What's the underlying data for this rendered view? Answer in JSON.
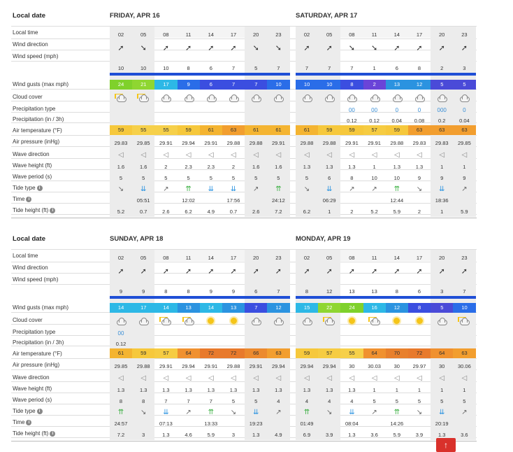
{
  "labels": {
    "local_date": "Local date",
    "local_time": "Local time",
    "wind_direction": "Wind direction",
    "wind_speed": "Wind speed (mph)",
    "wind_gusts": "Wind gusts (max mph)",
    "cloud_cover": "Cloud cover",
    "precip_type": "Precipitation type",
    "precip": "Precipitation (in / 3h)",
    "air_temp": "Air temperature (°F)",
    "air_pressure": "Air pressure (inHg)",
    "wave_direction": "Wave direction",
    "wave_height": "Wave height (ft)",
    "wave_period": "Wave period (s)",
    "tide_type": "Tide type",
    "time": "Time",
    "tide_height": "Tide height (ft)"
  },
  "times": [
    "02",
    "05",
    "08",
    "11",
    "14",
    "17",
    "20",
    "23"
  ],
  "days": [
    {
      "title": "FRIDAY, APR 16",
      "wind_speed": [
        "10",
        "10",
        "10",
        "8",
        "6",
        "7",
        "5",
        "7"
      ],
      "wind_dir": [
        "➚",
        "➘",
        "➚",
        "➚",
        "➚",
        "➚",
        "➘",
        "➘"
      ],
      "gusts": [
        "24",
        "21",
        "17",
        "9",
        "6",
        "7",
        "7",
        "10"
      ],
      "gust_colors": [
        "#7fd12b",
        "#8fd631",
        "#2db8e6",
        "#2a6de8",
        "#3b4ee0",
        "#3b4ee0",
        "#3b4ee0",
        "#2a6de8"
      ],
      "cloud": [
        "sun-cloud",
        "sun-cloud",
        "cloud",
        "cloud",
        "cloud",
        "cloud",
        "cloud",
        "cloud"
      ],
      "precip_type": [
        "",
        "",
        "",
        "",
        "",
        "",
        "",
        ""
      ],
      "precip": [
        "",
        "",
        "",
        "",
        "",
        "",
        "",
        ""
      ],
      "temp": [
        "59",
        "55",
        "55",
        "59",
        "61",
        "63",
        "61",
        "61"
      ],
      "temp_colors": [
        "#f6c83c",
        "#f6d04a",
        "#f6d04a",
        "#f6c83c",
        "#f4b431",
        "#f29e2f",
        "#f4b431",
        "#f4b431"
      ],
      "pressure": [
        "29.83",
        "29.85",
        "29.91",
        "29.94",
        "29.91",
        "29.88",
        "29.88",
        "29.91"
      ],
      "wave_dir": [
        "◁",
        "◁",
        "◁",
        "◁",
        "◁",
        "◁",
        "◁",
        "◁"
      ],
      "wave_height": [
        "1.6",
        "1.6",
        "2",
        "2.3",
        "2.3",
        "2",
        "1.6",
        "1.6"
      ],
      "wave_period": [
        "5",
        "5",
        "5",
        "5",
        "5",
        "5",
        "5",
        "5"
      ],
      "tide_type": [
        "↘",
        "⇊",
        "↗",
        "⇈",
        "⇊",
        "⇊",
        "↗",
        "⇈"
      ],
      "tide_time": [
        "",
        "05:51",
        "",
        "12:02",
        "",
        "17:56",
        "",
        "24:12"
      ],
      "tide_height": [
        "5.2",
        "0.7",
        "2.6",
        "6.2",
        "4.9",
        "0.7",
        "2.6",
        "7.2"
      ]
    },
    {
      "title": "SATURDAY, APR 17",
      "wind_speed": [
        "7",
        "7",
        "7",
        "1",
        "6",
        "8",
        "2",
        "3"
      ],
      "wind_dir": [
        "➚",
        "➚",
        "➘",
        "➘",
        "➚",
        "➚",
        "➚",
        "➚"
      ],
      "gusts": [
        "10",
        "10",
        "8",
        "2",
        "13",
        "12",
        "5",
        "5"
      ],
      "gust_colors": [
        "#2a6de8",
        "#2a6de8",
        "#3b4ee0",
        "#6a44d8",
        "#2b93e0",
        "#2b93e0",
        "#4a4ad8",
        "#4a4ad8"
      ],
      "cloud": [
        "cloud",
        "cloud",
        "cloud",
        "cloud",
        "cloud",
        "cloud",
        "cloud",
        "cloud"
      ],
      "precip_type": [
        "",
        "",
        "00",
        "00",
        "0",
        "0",
        "000",
        "0"
      ],
      "precip": [
        "",
        "",
        "0.12",
        "0.12",
        "0.04",
        "0.08",
        "0.2",
        "0.04"
      ],
      "temp": [
        "61",
        "59",
        "59",
        "57",
        "59",
        "63",
        "63",
        "63"
      ],
      "temp_colors": [
        "#f4b431",
        "#f6c83c",
        "#f6c83c",
        "#f6cc42",
        "#f6c83c",
        "#f29e2f",
        "#f29e2f",
        "#f29e2f"
      ],
      "pressure": [
        "29.88",
        "29.88",
        "29.91",
        "29.91",
        "29.88",
        "29.83",
        "29.83",
        "29.85"
      ],
      "wave_dir": [
        "◁",
        "◁",
        "◁",
        "◁",
        "◁",
        "◁",
        "◁",
        "◁"
      ],
      "wave_height": [
        "1.3",
        "1.3",
        "1.3",
        "1",
        "1.3",
        "1.3",
        "1",
        "1"
      ],
      "wave_period": [
        "5",
        "6",
        "8",
        "10",
        "10",
        "9",
        "9",
        "9"
      ],
      "tide_type": [
        "↘",
        "⇊",
        "↗",
        "↗",
        "⇈",
        "↘",
        "⇊",
        "↗"
      ],
      "tide_time": [
        "",
        "06:29",
        "",
        "",
        "12:44",
        "",
        "18:36",
        ""
      ],
      "tide_height": [
        "6.2",
        "1",
        "2",
        "5.2",
        "5.9",
        "2",
        "1",
        "5.9"
      ]
    },
    {
      "title": "SUNDAY, APR 18",
      "wind_speed": [
        "9",
        "9",
        "8",
        "8",
        "9",
        "9",
        "6",
        "7"
      ],
      "wind_dir": [
        "➚",
        "➚",
        "➚",
        "➚",
        "➚",
        "➚",
        "➚",
        "➚"
      ],
      "gusts": [
        "14",
        "17",
        "14",
        "13",
        "14",
        "13",
        "7",
        "12"
      ],
      "gust_colors": [
        "#2db8e6",
        "#2db8e6",
        "#2db8e6",
        "#2b93e0",
        "#2db8e6",
        "#2b93e0",
        "#3b4ee0",
        "#2b93e0"
      ],
      "cloud": [
        "cloud",
        "cloud",
        "sun-cloud",
        "sun-cloud",
        "sun",
        "sun",
        "cloud",
        "cloud"
      ],
      "precip_type": [
        "00",
        "",
        "",
        "",
        "",
        "",
        "",
        ""
      ],
      "precip": [
        "0.12",
        "",
        "",
        "",
        "",
        "",
        "",
        ""
      ],
      "temp": [
        "61",
        "59",
        "57",
        "64",
        "72",
        "72",
        "66",
        "63"
      ],
      "temp_colors": [
        "#f4b431",
        "#f6c83c",
        "#f6cc42",
        "#f0912f",
        "#e87a2c",
        "#e87a2c",
        "#ec8a2e",
        "#f29e2f"
      ],
      "pressure": [
        "29.85",
        "29.88",
        "29.91",
        "29.94",
        "29.91",
        "29.88",
        "29.91",
        "29.94"
      ],
      "wave_dir": [
        "◁",
        "◁",
        "◁",
        "◁",
        "◁",
        "◁",
        "◁",
        "◁"
      ],
      "wave_height": [
        "1.3",
        "1.3",
        "1.3",
        "1.3",
        "1.3",
        "1.3",
        "1.3",
        "1.3"
      ],
      "wave_period": [
        "8",
        "8",
        "7",
        "7",
        "7",
        "5",
        "5",
        "4"
      ],
      "tide_type": [
        "⇈",
        "↘",
        "⇊",
        "↗",
        "⇈",
        "↘",
        "⇊",
        "↗"
      ],
      "tide_time": [
        "24:57",
        "",
        "07:13",
        "",
        "13:33",
        "",
        "19:23",
        ""
      ],
      "tide_height": [
        "7.2",
        "3",
        "1.3",
        "4.6",
        "5.9",
        "3",
        "1.3",
        "4.9"
      ]
    },
    {
      "title": "MONDAY, APR 19",
      "wind_speed": [
        "8",
        "12",
        "13",
        "13",
        "8",
        "6",
        "3",
        "7"
      ],
      "wind_dir": [
        "➚",
        "➚",
        "➚",
        "➚",
        "➚",
        "➚",
        "➚",
        "➚"
      ],
      "gusts": [
        "15",
        "22",
        "24",
        "16",
        "12",
        "8",
        "5",
        "10"
      ],
      "gust_colors": [
        "#2db8e6",
        "#8fd631",
        "#7fd12b",
        "#2db8e6",
        "#2b93e0",
        "#3b4ee0",
        "#4a4ad8",
        "#2a6de8"
      ],
      "cloud": [
        "cloud",
        "sun-cloud",
        "sun",
        "sun-cloud",
        "sun",
        "sun",
        "cloud",
        "sun-cloud"
      ],
      "precip_type": [
        "",
        "",
        "",
        "",
        "",
        "",
        "",
        ""
      ],
      "precip": [
        "",
        "",
        "",
        "",
        "",
        "",
        "",
        ""
      ],
      "temp": [
        "59",
        "57",
        "55",
        "64",
        "70",
        "72",
        "64",
        "63"
      ],
      "temp_colors": [
        "#f6c83c",
        "#f6cc42",
        "#f6d04a",
        "#f0912f",
        "#e8802c",
        "#e87a2c",
        "#f0912f",
        "#f29e2f"
      ],
      "pressure": [
        "29.94",
        "29.94",
        "30",
        "30.03",
        "30",
        "29.97",
        "30",
        "30.06"
      ],
      "wave_dir": [
        "◁",
        "◁",
        "◁",
        "◁",
        "◁",
        "◁",
        "◁",
        "◁"
      ],
      "wave_height": [
        "1.3",
        "1.3",
        "1.3",
        "1",
        "1",
        "1",
        "1",
        "1"
      ],
      "wave_period": [
        "4",
        "4",
        "4",
        "5",
        "5",
        "5",
        "5",
        "5"
      ],
      "tide_type": [
        "⇈",
        "↘",
        "⇊",
        "↗",
        "⇈",
        "↘",
        "⇊",
        "↗"
      ],
      "tide_time": [
        "01:49",
        "",
        "08:04",
        "",
        "14:26",
        "",
        "20:19",
        ""
      ],
      "tide_height": [
        "6.9",
        "3.9",
        "1.3",
        "3.6",
        "5.9",
        "3.9",
        "1.3",
        "3.6"
      ]
    }
  ],
  "colors": {
    "grey_col": "#ececec",
    "wind_bar": "#1f4fd6",
    "separator": "#dddddd"
  },
  "scroll_top_label": "↑"
}
